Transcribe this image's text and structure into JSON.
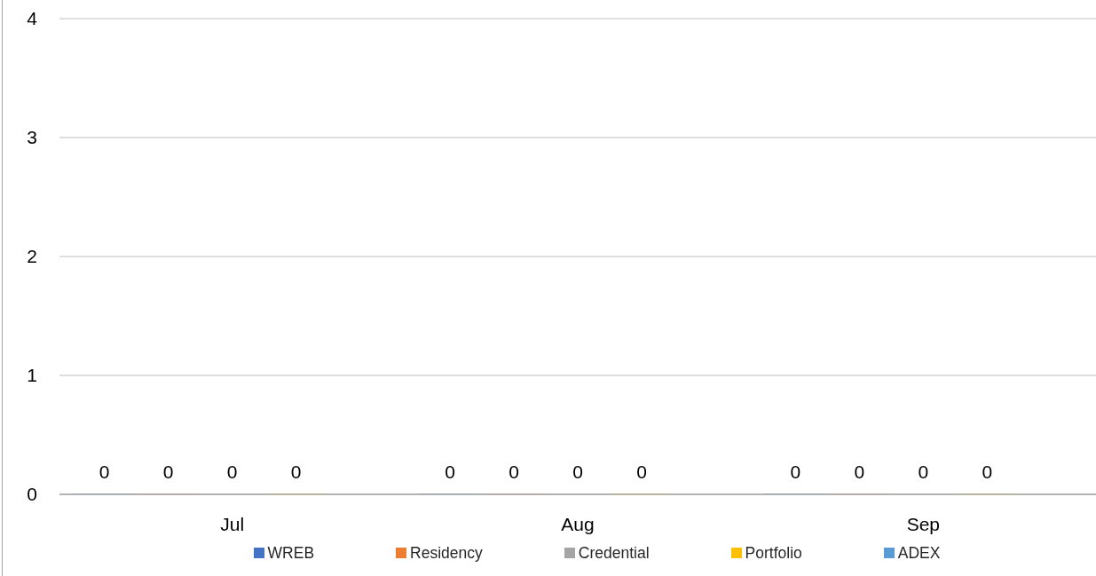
{
  "chart_data": {
    "type": "bar",
    "categories": [
      "Jul",
      "Aug",
      "Sep"
    ],
    "series": [
      {
        "name": "WREB",
        "color": "#4472c4",
        "values": [
          0,
          0,
          0
        ]
      },
      {
        "name": "Residency",
        "color": "#ed7d31",
        "values": [
          0,
          0,
          0
        ]
      },
      {
        "name": "Credential",
        "color": "#a5a5a5",
        "values": [
          0,
          0,
          0
        ]
      },
      {
        "name": "Portfolio",
        "color": "#ffc000",
        "values": [
          0,
          0,
          0
        ]
      },
      {
        "name": "ADEX",
        "color": "#5b9bd5",
        "values": [
          null,
          null,
          null
        ]
      }
    ],
    "ylim": [
      0,
      4
    ],
    "yticks": [
      0,
      1,
      2,
      3,
      4
    ],
    "grid": "y",
    "legend": "bottom",
    "data_labels": true
  }
}
